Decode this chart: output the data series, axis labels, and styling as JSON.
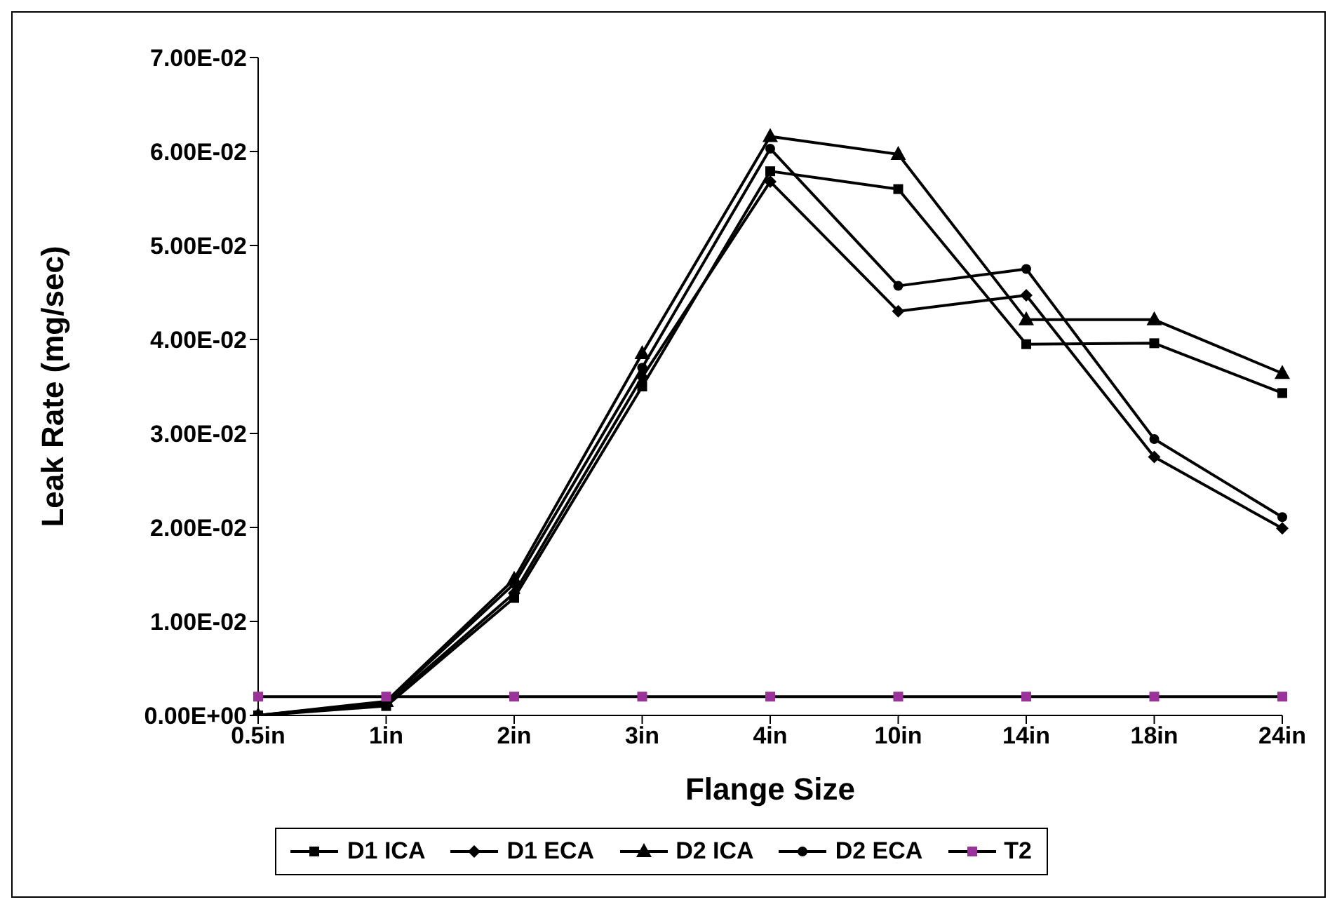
{
  "chart_data": {
    "type": "line",
    "xlabel": "Flange Size",
    "ylabel": "Leak Rate (mg/sec)",
    "categories": [
      "0.5in",
      "1in",
      "2in",
      "3in",
      "4in",
      "10in",
      "14in",
      "18in",
      "24in"
    ],
    "series": [
      {
        "name": "D1 ICA",
        "color": "#000000",
        "marker": "square",
        "values": [
          0,
          0.001,
          0.0125,
          0.035,
          0.0579,
          0.056,
          0.0395,
          0.0396,
          0.0343
        ]
      },
      {
        "name": "D1 ECA",
        "color": "#000000",
        "marker": "diamond",
        "values": [
          0,
          0.0012,
          0.013,
          0.036,
          0.0568,
          0.043,
          0.0447,
          0.0275,
          0.0199
        ]
      },
      {
        "name": "D2 ICA",
        "color": "#000000",
        "marker": "triangle",
        "values": [
          0,
          0.0015,
          0.0145,
          0.0385,
          0.0616,
          0.0597,
          0.0421,
          0.0421,
          0.0364
        ]
      },
      {
        "name": "D2 ECA",
        "color": "#000000",
        "marker": "circle",
        "values": [
          0,
          0.0014,
          0.014,
          0.037,
          0.0603,
          0.0457,
          0.0475,
          0.0294,
          0.0211
        ]
      },
      {
        "name": "T2",
        "color": "#993399",
        "marker": "square",
        "values": [
          0.002,
          0.002,
          0.002,
          0.002,
          0.002,
          0.002,
          0.002,
          0.002,
          0.002
        ]
      }
    ],
    "ylim": [
      0,
      0.07
    ],
    "yticks": [
      {
        "value": 0,
        "label": "0.00E+00"
      },
      {
        "value": 0.01,
        "label": "1.00E-02"
      },
      {
        "value": 0.02,
        "label": "2.00E-02"
      },
      {
        "value": 0.03,
        "label": "3.00E-02"
      },
      {
        "value": 0.04,
        "label": "4.00E-02"
      },
      {
        "value": 0.05,
        "label": "5.00E-02"
      },
      {
        "value": 0.06,
        "label": "6.00E-02"
      },
      {
        "value": 0.07,
        "label": "7.00E-02"
      }
    ],
    "grid": false,
    "legend": "bottom",
    "line_style": "solid"
  }
}
